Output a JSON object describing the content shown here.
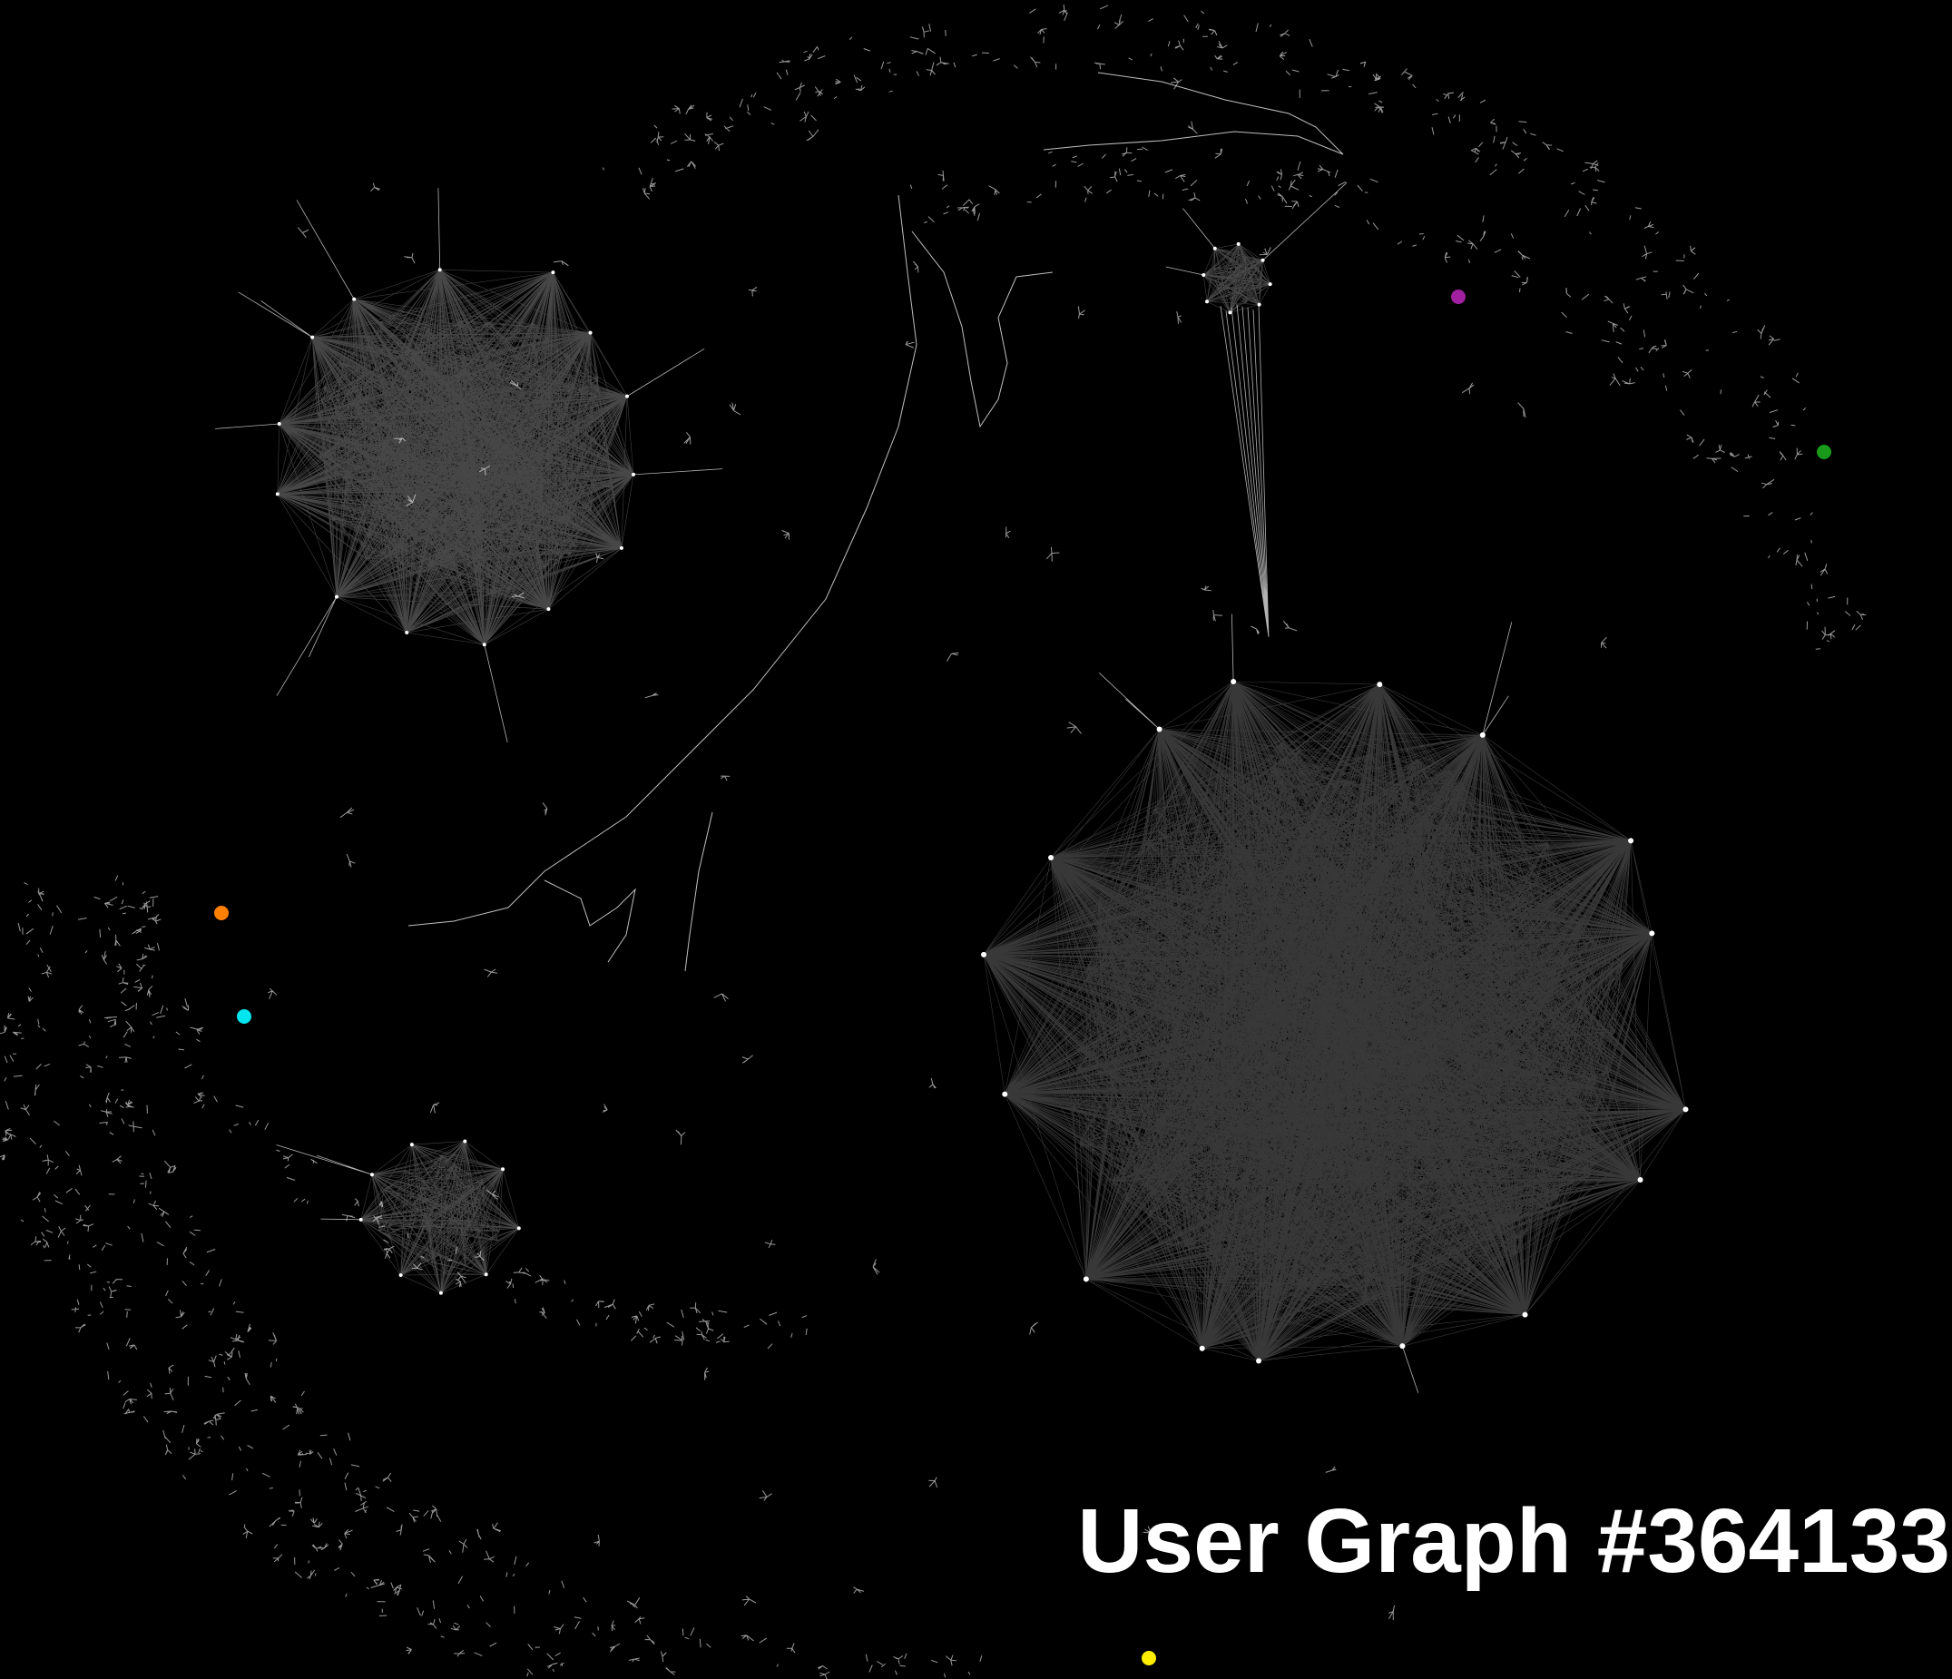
{
  "title": "User Graph #364133",
  "colors": {
    "background": "#000000",
    "edge": "#ffffff",
    "node": "#ffffff",
    "highlight_purple": "#a020a0",
    "highlight_green": "#1a9a1a",
    "highlight_orange": "#ff8000",
    "highlight_cyan": "#00e5ee",
    "highlight_yellow": "#ffee00"
  },
  "clusters": [
    {
      "name": "cluster-large-right",
      "label": ""
    },
    {
      "name": "cluster-upper-left",
      "label": ""
    },
    {
      "name": "cluster-lower-left",
      "label": ""
    },
    {
      "name": "cluster-small-top",
      "label": ""
    }
  ],
  "highlighted_nodes": [
    {
      "name": "highlight-node-purple",
      "color": "#a020a0"
    },
    {
      "name": "highlight-node-green",
      "color": "#1a9a1a"
    },
    {
      "name": "highlight-node-orange",
      "color": "#ff8000"
    },
    {
      "name": "highlight-node-cyan",
      "color": "#00e5ee"
    },
    {
      "name": "highlight-node-yellow",
      "color": "#ffee00"
    }
  ]
}
